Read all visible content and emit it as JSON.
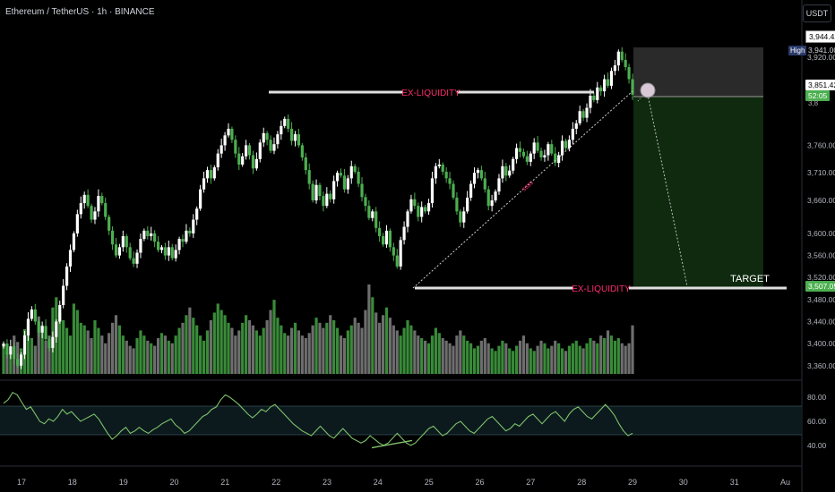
{
  "header": {
    "title": "Ethereum / TetherUS · 1h · BINANCE",
    "currency": "USDT"
  },
  "indicator": {
    "rsi_label": ""
  },
  "price_tags": {
    "top": "3,944.42",
    "high_label": "High",
    "high": "3,941.00",
    "last": "3,851.42",
    "countdown": "52:05",
    "entry": "3,8",
    "target": "3,507.05"
  },
  "colors": {
    "background": "#000000",
    "candle_up": "#ffffff",
    "candle_down": "#4caf50",
    "volume_up": "#3f9a3f",
    "volume_down": "#7a7a7a",
    "rsi_line": "#7ec26a",
    "rsi_band": "#0c1a1e",
    "liquidity_text": "#ff2d6f",
    "target_zone": "#0f2a0f",
    "stop_zone": "#2c2c2c",
    "last_price_tag": "#4caf50"
  },
  "chart_data": [
    {
      "type": "candlestick",
      "x_axis": {
        "tick_labels": [
          "17",
          "18",
          "19",
          "20",
          "21",
          "22",
          "23",
          "24",
          "25",
          "26",
          "27",
          "28",
          "29",
          "30",
          "31",
          "Au"
        ]
      },
      "y_axis": {
        "range": [
          3345,
          3975
        ],
        "tick_labels": [
          "3,920.00",
          "3,760.00",
          "3,710.00",
          "3,660.00",
          "3,600.00",
          "3,560.00",
          "3,520.00",
          "3,480.00",
          "3,440.00",
          "3,400.00",
          "3,360.00"
        ]
      },
      "closes": [
        3400,
        3380,
        3395,
        3372,
        3360,
        3380,
        3415,
        3445,
        3462,
        3440,
        3420,
        3432,
        3408,
        3392,
        3412,
        3440,
        3470,
        3505,
        3540,
        3570,
        3600,
        3635,
        3655,
        3670,
        3650,
        3625,
        3640,
        3668,
        3655,
        3630,
        3605,
        3580,
        3560,
        3575,
        3595,
        3575,
        3555,
        3545,
        3565,
        3590,
        3605,
        3595,
        3600,
        3585,
        3570,
        3575,
        3560,
        3575,
        3555,
        3570,
        3590,
        3585,
        3605,
        3600,
        3625,
        3645,
        3680,
        3700,
        3715,
        3700,
        3720,
        3745,
        3760,
        3778,
        3790,
        3770,
        3745,
        3725,
        3740,
        3760,
        3742,
        3718,
        3735,
        3765,
        3782,
        3770,
        3750,
        3762,
        3780,
        3795,
        3808,
        3790,
        3768,
        3780,
        3760,
        3738,
        3715,
        3690,
        3660,
        3688,
        3668,
        3650,
        3672,
        3662,
        3695,
        3710,
        3705,
        3680,
        3700,
        3722,
        3712,
        3690,
        3666,
        3650,
        3628,
        3640,
        3610,
        3595,
        3580,
        3605,
        3575,
        3560,
        3540,
        3588,
        3612,
        3640,
        3662,
        3650,
        3630,
        3648,
        3640,
        3655,
        3700,
        3722,
        3725,
        3712,
        3700,
        3690,
        3665,
        3640,
        3620,
        3640,
        3665,
        3690,
        3710,
        3715,
        3700,
        3680,
        3650,
        3660,
        3676,
        3700,
        3722,
        3705,
        3714,
        3735,
        3755,
        3748,
        3740,
        3730,
        3745,
        3765,
        3750,
        3738,
        3742,
        3762,
        3745,
        3728,
        3742,
        3768,
        3755,
        3770,
        3790,
        3800,
        3822,
        3810,
        3828,
        3850,
        3842,
        3865,
        3858,
        3880,
        3868,
        3895,
        3905,
        3930,
        3915,
        3902,
        3880,
        3852
      ],
      "volume": [
        22,
        18,
        15,
        30,
        25,
        20,
        35,
        40,
        28,
        22,
        45,
        38,
        26,
        30,
        52,
        60,
        48,
        42,
        36,
        30,
        55,
        50,
        40,
        38,
        34,
        28,
        42,
        36,
        30,
        24,
        32,
        40,
        46,
        38,
        30,
        26,
        22,
        20,
        28,
        34,
        30,
        26,
        24,
        22,
        28,
        32,
        30,
        26,
        24,
        30,
        36,
        40,
        46,
        52,
        44,
        38,
        30,
        26,
        34,
        42,
        48,
        55,
        50,
        46,
        40,
        36,
        30,
        34,
        40,
        46,
        42,
        38,
        34,
        30,
        36,
        42,
        50,
        58,
        44,
        38,
        32,
        30,
        36,
        40,
        34,
        30,
        28,
        32,
        38,
        44,
        40,
        36,
        40,
        46,
        42,
        36,
        30,
        28,
        34,
        38,
        44,
        40,
        36,
        50,
        70,
        60,
        48,
        40,
        46,
        52,
        44,
        38,
        34,
        30,
        36,
        42,
        38,
        34,
        30,
        28,
        26,
        24,
        30,
        36,
        32,
        28,
        26,
        24,
        22,
        30,
        34,
        30,
        26,
        24,
        20,
        22,
        26,
        28,
        24,
        20,
        18,
        22,
        26,
        24,
        20,
        18,
        22,
        26,
        30,
        24,
        20,
        18,
        22,
        26,
        24,
        20,
        22,
        26,
        24,
        20,
        18,
        22,
        24,
        26,
        22,
        20,
        24,
        28,
        26,
        24,
        30,
        28,
        34,
        30,
        26,
        28,
        24,
        22,
        24,
        38
      ]
    },
    {
      "type": "line",
      "name": "RSI",
      "y_axis": {
        "range": [
          25,
          92
        ],
        "tick_labels": [
          "80.00",
          "60.00",
          "40.00"
        ],
        "band": [
          50,
          70
        ]
      },
      "values": [
        75,
        78,
        84,
        82,
        76,
        70,
        72,
        66,
        60,
        58,
        62,
        60,
        64,
        70,
        66,
        68,
        64,
        60,
        62,
        64,
        66,
        62,
        56,
        50,
        45,
        48,
        52,
        55,
        50,
        52,
        55,
        52,
        50,
        53,
        55,
        58,
        60,
        62,
        57,
        54,
        50,
        52,
        56,
        60,
        64,
        66,
        70,
        72,
        78,
        82,
        80,
        77,
        74,
        70,
        66,
        63,
        66,
        70,
        68,
        72,
        74,
        70,
        66,
        62,
        58,
        55,
        52,
        50,
        48,
        52,
        56,
        52,
        48,
        46,
        50,
        54,
        50,
        46,
        44,
        42,
        44,
        48,
        45,
        42,
        40,
        42,
        46,
        50,
        46,
        42,
        40,
        42,
        46,
        50,
        54,
        56,
        52,
        48,
        50,
        54,
        58,
        60,
        56,
        52,
        50,
        54,
        58,
        62,
        64,
        60,
        56,
        52,
        54,
        58,
        56,
        60,
        64,
        66,
        62,
        58,
        62,
        66,
        68,
        64,
        60,
        66,
        70,
        72,
        68,
        64,
        62,
        66,
        70,
        74,
        70,
        65,
        58,
        52,
        48,
        50
      ]
    }
  ],
  "annotations": {
    "upper_liquidity": "EX-LIQUIDITY",
    "lower_liquidity": "EX-LIQUIDITY",
    "target": "TARGET",
    "trendline_label": "ssss"
  }
}
